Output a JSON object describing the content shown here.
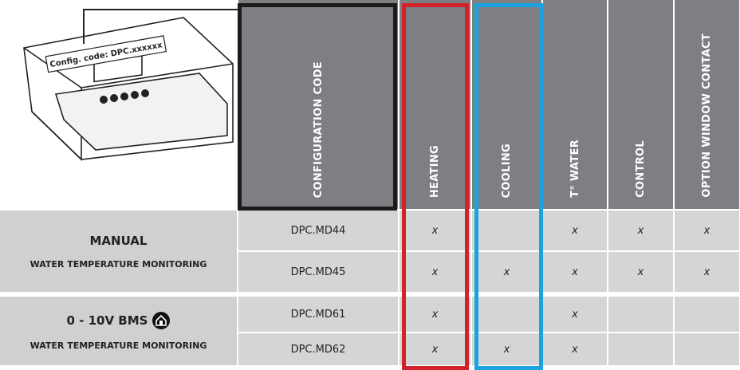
{
  "image": {
    "label": "Config. code: DPC.xxxxxx"
  },
  "table": {
    "columns": [
      "CONFIGURATION CODE",
      "HEATING",
      "COOLING",
      "T° WATER",
      "CONTROL",
      "OPTION WINDOW CONTACT"
    ],
    "groups": [
      {
        "title": "MANUAL",
        "subtitle": "WATER TEMPERATURE MONITORING",
        "rows": [
          {
            "code": "DPC.MD44",
            "cells": [
              "x",
              null,
              "x",
              "x",
              "x"
            ]
          },
          {
            "code": "DPC.MD45",
            "cells": [
              "x",
              "x",
              "x",
              "x",
              "x"
            ]
          }
        ]
      },
      {
        "title": "0 - 10V BMS",
        "subtitle": "WATER TEMPERATURE MONITORING",
        "rows": [
          {
            "code": "DPC.MD61",
            "cells": [
              "x",
              null,
              "x",
              null,
              null
            ]
          },
          {
            "code": "DPC.MD62",
            "cells": [
              "x",
              "x",
              "x",
              null,
              null
            ]
          }
        ]
      }
    ]
  }
}
